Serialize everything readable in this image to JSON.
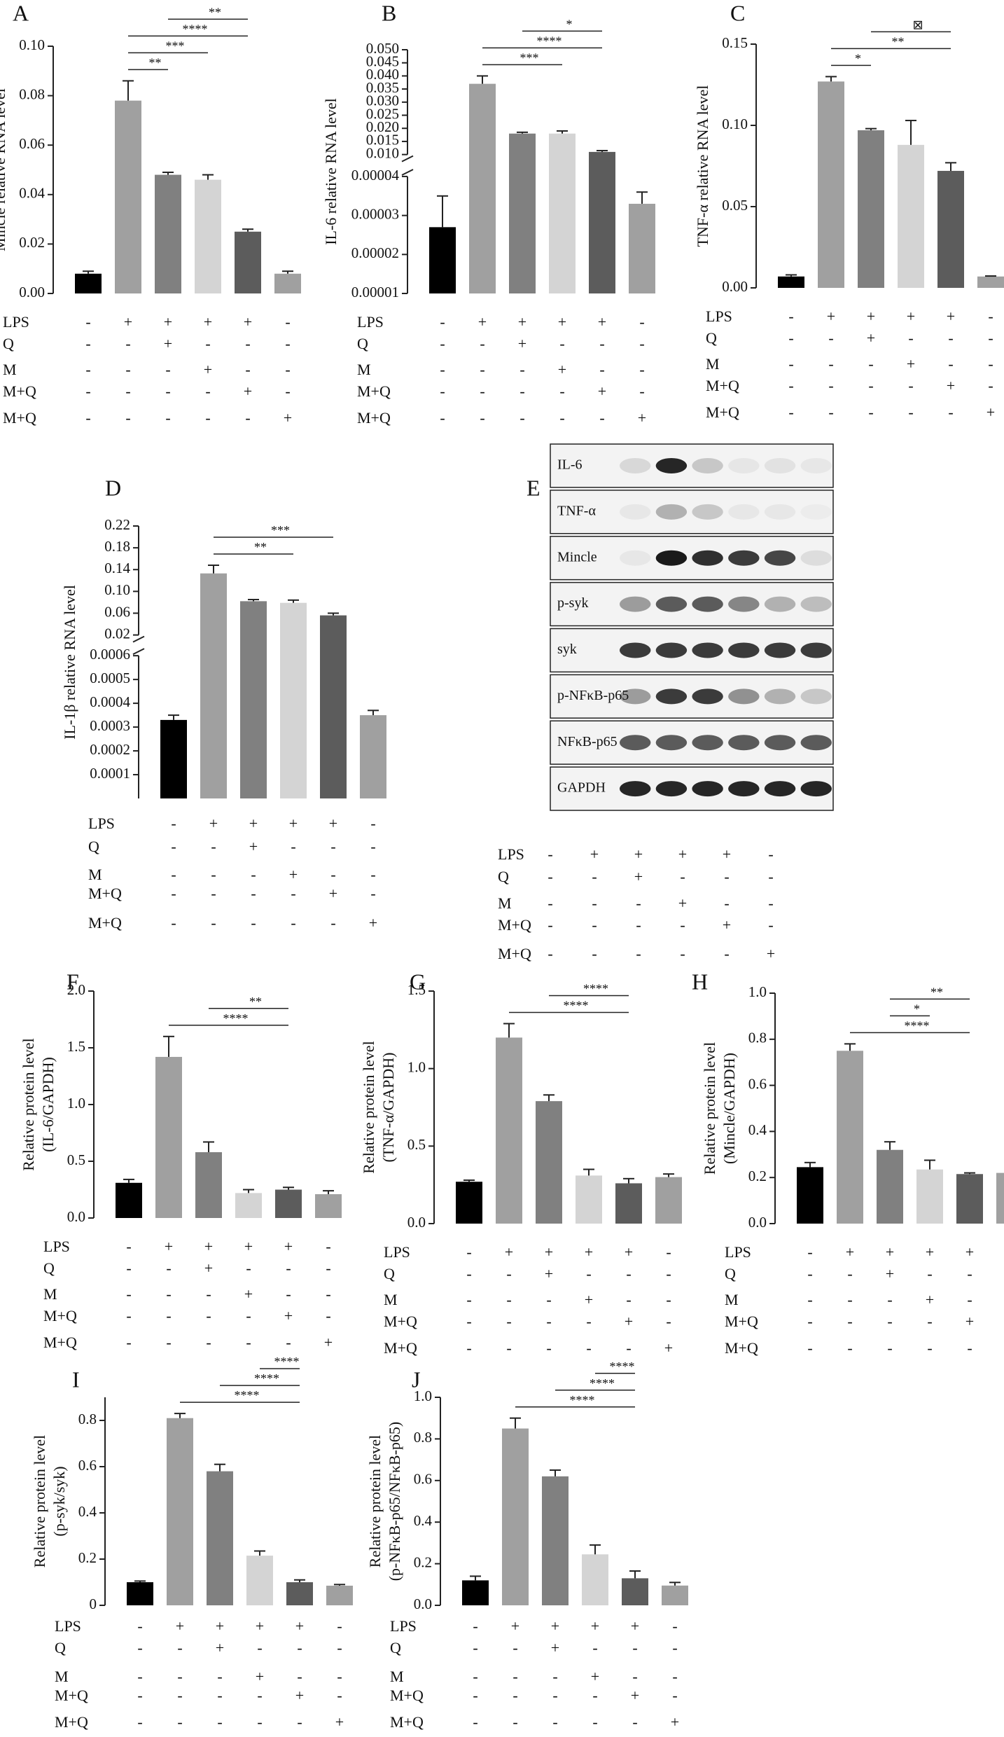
{
  "conditions": [
    {
      "label": "LPS",
      "marks": [
        "-",
        "+",
        "+",
        "+",
        "+",
        "-"
      ]
    },
    {
      "label": "Q",
      "marks": [
        "-",
        "-",
        "+",
        "-",
        "-",
        "-"
      ]
    },
    {
      "label": "M",
      "marks": [
        "-",
        "-",
        "-",
        "+",
        "-",
        "-"
      ]
    },
    {
      "label": "M+Q",
      "marks": [
        "-",
        "-",
        "-",
        "-",
        "+",
        "-"
      ]
    },
    {
      "label": "M+Q",
      "marks": [
        "-",
        "-",
        "-",
        "-",
        "-",
        "+"
      ]
    }
  ],
  "chart_data": [
    {
      "type": "bar",
      "title": "A",
      "ylabel": [
        "Mincle relative RNA level"
      ],
      "values": [
        0.008,
        0.078,
        0.048,
        0.046,
        0.025,
        0.008
      ],
      "errors": [
        0.001,
        0.008,
        0.001,
        0.002,
        0.001,
        0.001
      ],
      "colors": [
        "#000000",
        "#a0a0a0",
        "#808080",
        "#d4d4d4",
        "#5c5c5c",
        "#a0a0a0"
      ],
      "ylim": [
        0,
        0.1
      ],
      "yticks": [
        {
          "value": 0,
          "label": "0.00"
        },
        0.02,
        0.04,
        0.06,
        0.08,
        {
          "value": 0.1,
          "label": "0.10"
        }
      ],
      "annotations": [
        {
          "text": "**",
          "from": 1,
          "to": 2
        },
        {
          "text": "***",
          "from": 1,
          "to": 3
        },
        {
          "text": "****",
          "from": 1,
          "to": 4
        },
        {
          "text": "**",
          "from": 2,
          "to": 4
        }
      ]
    },
    {
      "type": "bar",
      "title": "B",
      "ylabel": [
        "IL-6 relative RNA level"
      ],
      "values": [
        2.7e-05,
        0.037,
        0.018,
        0.018,
        0.011,
        3.3e-05
      ],
      "errors": [
        8e-06,
        0.003,
        0.0005,
        0.001,
        0.0005,
        3e-06
      ],
      "colors": [
        "#000000",
        "#a0a0a0",
        "#808080",
        "#d4d4d4",
        "#5c5c5c",
        "#a0a0a0"
      ],
      "segments": [
        {
          "ylim": [
            1e-05,
            4e-05
          ],
          "yticks": [
            1e-05,
            2e-05,
            3e-05,
            4e-05
          ]
        },
        {
          "ylim": [
            0.01,
            0.05
          ],
          "yticks": [
            {
              "value": 0.01,
              "label": "0.010"
            },
            0.015,
            {
              "value": 0.02,
              "label": "0.020"
            },
            0.025,
            {
              "value": 0.03,
              "label": "0.030"
            },
            0.035,
            {
              "value": 0.04,
              "label": "0.040"
            },
            0.045,
            {
              "value": 0.05,
              "label": "0.050"
            }
          ]
        }
      ],
      "annotations": [
        {
          "text": "***",
          "from": 1,
          "to": 3
        },
        {
          "text": "****",
          "from": 1,
          "to": 4
        },
        {
          "text": "*",
          "from": 2,
          "to": 4
        }
      ]
    },
    {
      "type": "bar",
      "title": "C",
      "ylabel": [
        "TNF-α relative RNA level"
      ],
      "values": [
        0.007,
        0.127,
        0.097,
        0.088,
        0.072,
        0.007
      ],
      "errors": [
        0.001,
        0.003,
        0.001,
        0.015,
        0.005,
        0.0003
      ],
      "colors": [
        "#000000",
        "#a0a0a0",
        "#808080",
        "#d4d4d4",
        "#5c5c5c",
        "#a0a0a0"
      ],
      "ylim": [
        0,
        0.15
      ],
      "yticks": [
        {
          "value": 0,
          "label": "0.00"
        },
        0.05,
        {
          "value": 0.1,
          "label": "0.10"
        },
        0.15
      ],
      "annotations": [
        {
          "text": "*",
          "from": 1,
          "to": 2
        },
        {
          "text": "**",
          "from": 1,
          "to": 4
        },
        {
          "text": "⊠",
          "from": 2,
          "to": 4
        }
      ]
    },
    {
      "type": "bar",
      "title": "D",
      "ylabel": [
        "IL-1β relative RNA level"
      ],
      "values": [
        0.00033,
        0.133,
        0.082,
        0.079,
        0.056,
        0.00035
      ],
      "errors": [
        2e-05,
        0.015,
        0.003,
        0.005,
        0.004,
        2e-05
      ],
      "colors": [
        "#000000",
        "#a0a0a0",
        "#808080",
        "#d4d4d4",
        "#5c5c5c",
        "#a0a0a0"
      ],
      "segments": [
        {
          "ylim": [
            0,
            0.0006
          ],
          "yticks": [
            0.0001,
            0.0002,
            0.0003,
            0.0004,
            0.0005,
            0.0006
          ]
        },
        {
          "ylim": [
            0.02,
            0.22
          ],
          "yticks": [
            0.02,
            0.06,
            {
              "value": 0.1,
              "label": "0.10"
            },
            0.14,
            0.18,
            0.22
          ]
        }
      ],
      "annotations": [
        {
          "text": "**",
          "from": 1,
          "to": 3
        },
        {
          "text": "***",
          "from": 1,
          "to": 4
        }
      ]
    },
    {
      "type": "blot",
      "title": "E",
      "bands": [
        "IL-6",
        "TNF-α",
        "Mincle",
        "p-syk",
        "syk",
        "p-NFκB-p65",
        "NFκB-p65",
        "GAPDH"
      ]
    },
    {
      "type": "bar",
      "title": "F",
      "ylabel": [
        "Relative protein level",
        "(IL-6/GAPDH)"
      ],
      "values": [
        0.31,
        1.42,
        0.58,
        0.22,
        0.25,
        0.21
      ],
      "errors": [
        0.03,
        0.18,
        0.09,
        0.03,
        0.02,
        0.03
      ],
      "colors": [
        "#000000",
        "#a0a0a0",
        "#808080",
        "#d4d4d4",
        "#5c5c5c",
        "#a0a0a0"
      ],
      "ylim": [
        0,
        2
      ],
      "yticks": [
        {
          "value": 0,
          "label": "0.0"
        },
        0.5,
        {
          "value": 1,
          "label": "1.0"
        },
        1.5,
        {
          "value": 2,
          "label": "2.0"
        }
      ],
      "annotations": [
        {
          "text": "****",
          "from": 1,
          "to": 4
        },
        {
          "text": "**",
          "from": 2,
          "to": 4
        }
      ]
    },
    {
      "type": "bar",
      "title": "G",
      "ylabel": [
        "Relative protein level",
        "(TNF-α/GAPDH)"
      ],
      "values": [
        0.27,
        1.2,
        0.79,
        0.31,
        0.26,
        0.3
      ],
      "errors": [
        0.01,
        0.09,
        0.04,
        0.04,
        0.03,
        0.02
      ],
      "colors": [
        "#000000",
        "#a0a0a0",
        "#808080",
        "#d4d4d4",
        "#5c5c5c",
        "#a0a0a0"
      ],
      "ylim": [
        0,
        1.5
      ],
      "yticks": [
        {
          "value": 0,
          "label": "0.0"
        },
        0.5,
        {
          "value": 1,
          "label": "1.0"
        },
        1.5
      ],
      "annotations": [
        {
          "text": "****",
          "from": 1,
          "to": 4
        },
        {
          "text": "****",
          "from": 2,
          "to": 4
        }
      ]
    },
    {
      "type": "bar",
      "title": "H",
      "ylabel": [
        "Relative protein level",
        "(Mincle/GAPDH)"
      ],
      "values": [
        0.245,
        0.75,
        0.32,
        0.235,
        0.215,
        0.22
      ],
      "errors": [
        0.02,
        0.03,
        0.035,
        0.04,
        0.005,
        0.03
      ],
      "colors": [
        "#000000",
        "#a0a0a0",
        "#808080",
        "#d4d4d4",
        "#5c5c5c",
        "#a0a0a0"
      ],
      "ylim": [
        0,
        1
      ],
      "yticks": [
        {
          "value": 0,
          "label": "0.0"
        },
        0.2,
        0.4,
        0.6,
        0.8,
        {
          "value": 1,
          "label": "1.0"
        }
      ],
      "annotations": [
        {
          "text": "****",
          "from": 1,
          "to": 4
        },
        {
          "text": "*",
          "from": 2,
          "to": 3
        },
        {
          "text": "**",
          "from": 2,
          "to": 4
        }
      ]
    },
    {
      "type": "bar",
      "title": "I",
      "ylabel": [
        "Relative protein level",
        "(p-syk/syk)"
      ],
      "values": [
        0.1,
        0.81,
        0.58,
        0.215,
        0.1,
        0.085
      ],
      "errors": [
        0.005,
        0.02,
        0.03,
        0.02,
        0.01,
        0.005
      ],
      "colors": [
        "#000000",
        "#a0a0a0",
        "#808080",
        "#d4d4d4",
        "#5c5c5c",
        "#a0a0a0"
      ],
      "ylim": [
        0,
        0.9
      ],
      "yticks": [
        0,
        0.2,
        0.4,
        0.6,
        0.8
      ],
      "annotations": [
        {
          "text": "****",
          "from": 1,
          "to": 4
        },
        {
          "text": "****",
          "from": 2,
          "to": 4
        },
        {
          "text": "****",
          "from": 3,
          "to": 4
        }
      ]
    },
    {
      "type": "bar",
      "title": "J",
      "ylabel": [
        "Relative protein level",
        "(p-NFκB-p65/NFκB-p65)"
      ],
      "values": [
        0.12,
        0.85,
        0.62,
        0.245,
        0.13,
        0.095
      ],
      "errors": [
        0.02,
        0.05,
        0.03,
        0.045,
        0.035,
        0.015
      ],
      "colors": [
        "#000000",
        "#a0a0a0",
        "#808080",
        "#d4d4d4",
        "#5c5c5c",
        "#a0a0a0"
      ],
      "ylim": [
        0,
        1
      ],
      "yticks": [
        {
          "value": 0,
          "label": "0.0"
        },
        0.2,
        0.4,
        0.6,
        0.8,
        {
          "value": 1,
          "label": "1.0"
        }
      ],
      "annotations": [
        {
          "text": "****",
          "from": 1,
          "to": 4
        },
        {
          "text": "****",
          "from": 2,
          "to": 4
        },
        {
          "text": "****",
          "from": 3,
          "to": 4
        }
      ]
    }
  ]
}
